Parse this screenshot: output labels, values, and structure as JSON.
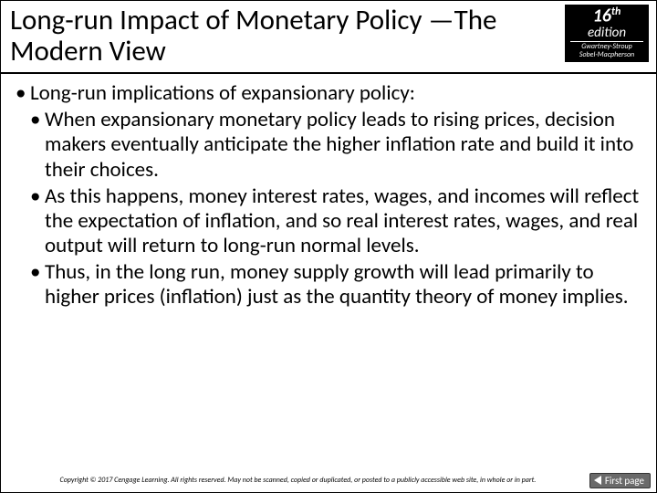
{
  "header": {
    "title": "Long-run Impact of Monetary Policy —The Modern View",
    "edition": {
      "number": "16",
      "suffix": "th",
      "word": "edition",
      "authors_line1": "Gwartney-Stroup",
      "authors_line2": "Sobel-Macpherson"
    }
  },
  "body": {
    "lead": "Long-run implications of expansionary policy:",
    "points": [
      "When expansionary monetary policy leads to rising prices, decision makers eventually anticipate the higher inflation rate and build it into their choices.",
      "As this happens, money interest rates, wages, and incomes will reflect the expectation of inflation, and so real interest rates, wages, and real output will return to long-run normal levels.",
      "Thus, in the long run, money supply growth will lead primarily to higher prices (inflation) just as the quantity theory of money implies."
    ]
  },
  "footer": {
    "copyright": "Copyright © 2017 Cengage Learning. All rights reserved. May not be scanned, copied or duplicated, or posted to a publicly accessible web site, in whole or in part.",
    "first_page_label": "First page"
  },
  "colors": {
    "text": "#000000",
    "badge_bg": "#000000",
    "badge_fg": "#ffffff",
    "button_bg": "#6a6a6a",
    "button_fg": "#ffffff"
  }
}
